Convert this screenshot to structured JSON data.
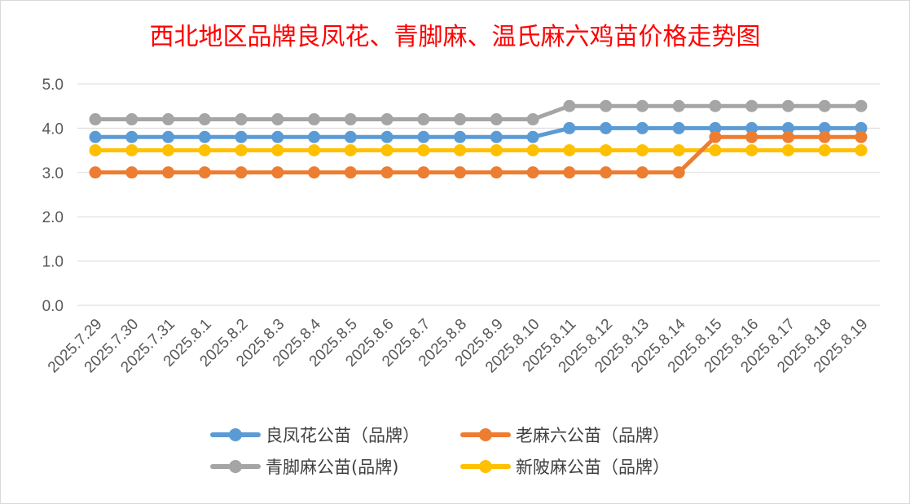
{
  "chart_data": {
    "type": "line",
    "title": "西北地区品牌良凤花、青脚麻、温氏麻六鸡苗价格走势图",
    "xlabel": "",
    "ylabel": "",
    "ylim": [
      0,
      5
    ],
    "yticks": [
      "0.0",
      "1.0",
      "2.0",
      "3.0",
      "4.0",
      "5.0"
    ],
    "grid": true,
    "legend_position": "bottom",
    "categories": [
      "2025.7.29",
      "2025.7.30",
      "2025.7.31",
      "2025.8.1",
      "2025.8.2",
      "2025.8.3",
      "2025.8.4",
      "2025.8.5",
      "2025.8.6",
      "2025.8.7",
      "2025.8.8",
      "2025.8.9",
      "2025.8.10",
      "2025.8.11",
      "2025.8.12",
      "2025.8.13",
      "2025.8.14",
      "2025.8.15",
      "2025.8.16",
      "2025.8.17",
      "2025.8.18",
      "2025.8.19"
    ],
    "series": [
      {
        "name": "良凤花公苗（品牌）",
        "color": "#5b9bd5",
        "values": [
          3.8,
          3.8,
          3.8,
          3.8,
          3.8,
          3.8,
          3.8,
          3.8,
          3.8,
          3.8,
          3.8,
          3.8,
          3.8,
          4.0,
          4.0,
          4.0,
          4.0,
          4.0,
          4.0,
          4.0,
          4.0,
          4.0
        ]
      },
      {
        "name": "老麻六公苗（品牌）",
        "color": "#ed7d31",
        "values": [
          3.0,
          3.0,
          3.0,
          3.0,
          3.0,
          3.0,
          3.0,
          3.0,
          3.0,
          3.0,
          3.0,
          3.0,
          3.0,
          3.0,
          3.0,
          3.0,
          3.0,
          3.8,
          3.8,
          3.8,
          3.8,
          3.8
        ]
      },
      {
        "name": "青脚麻公苗(品牌)",
        "color": "#a5a5a5",
        "values": [
          4.2,
          4.2,
          4.2,
          4.2,
          4.2,
          4.2,
          4.2,
          4.2,
          4.2,
          4.2,
          4.2,
          4.2,
          4.2,
          4.5,
          4.5,
          4.5,
          4.5,
          4.5,
          4.5,
          4.5,
          4.5,
          4.5
        ]
      },
      {
        "name": "新陂麻公苗（品牌）",
        "color": "#ffc000",
        "values": [
          3.5,
          3.5,
          3.5,
          3.5,
          3.5,
          3.5,
          3.5,
          3.5,
          3.5,
          3.5,
          3.5,
          3.5,
          3.5,
          3.5,
          3.5,
          3.5,
          3.5,
          3.5,
          3.5,
          3.5,
          3.5,
          3.5
        ]
      }
    ]
  }
}
